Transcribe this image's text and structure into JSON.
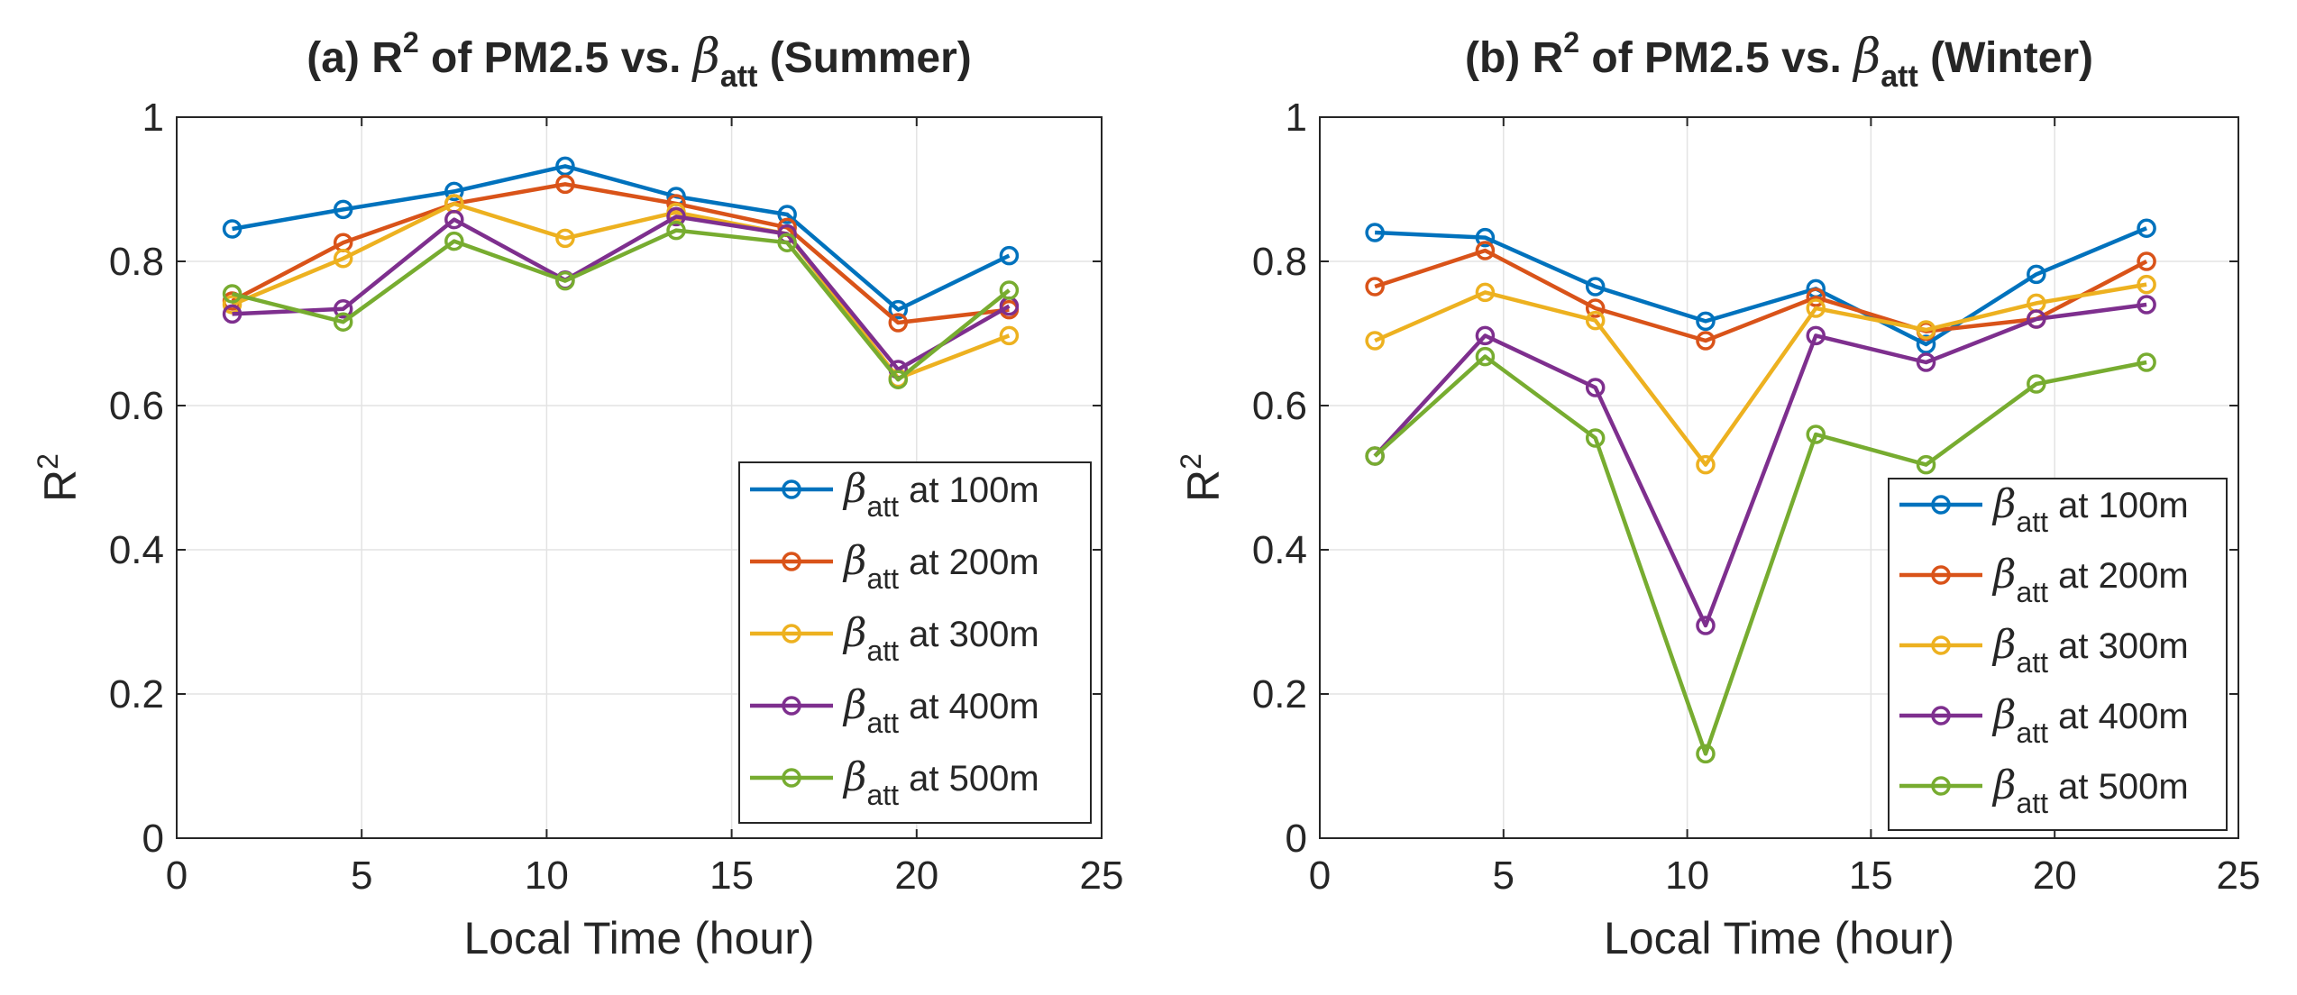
{
  "chart_data": [
    {
      "type": "line",
      "title_prefix": "(a) R",
      "title_sup": "2",
      "title_mid": " of PM2.5 vs. ",
      "title_greek": "β",
      "title_sub": "att",
      "title_suffix": " (Summer)",
      "xlabel": "Local Time (hour)",
      "ylabel": "R",
      "ylabel_sup": "2",
      "xlim": [
        0,
        25
      ],
      "ylim": [
        0,
        1
      ],
      "xticks": [
        0,
        5,
        10,
        15,
        20,
        25
      ],
      "yticks": [
        0,
        0.2,
        0.4,
        0.6,
        0.8,
        1
      ],
      "xtick_labels": [
        "0",
        "5",
        "10",
        "15",
        "20",
        "25"
      ],
      "ytick_labels": [
        "0",
        "0.2",
        "0.4",
        "0.6",
        "0.8",
        "1"
      ],
      "grid": true,
      "legend_position": "bottom-right",
      "x": [
        1.5,
        4.5,
        7.5,
        10.5,
        13.5,
        16.5,
        19.5,
        22.5
      ],
      "series": [
        {
          "greek": "β",
          "sub": "att",
          "label": " at 100m",
          "color": "#0072BD",
          "values": [
            0.845,
            0.872,
            0.897,
            0.932,
            0.89,
            0.865,
            0.733,
            0.808
          ]
        },
        {
          "greek": "β",
          "sub": "att",
          "label": " at 200m",
          "color": "#D95319",
          "values": [
            0.745,
            0.826,
            0.88,
            0.907,
            0.88,
            0.847,
            0.715,
            0.733
          ]
        },
        {
          "greek": "β",
          "sub": "att",
          "label": " at 300m",
          "color": "#EDB120",
          "values": [
            0.74,
            0.804,
            0.88,
            0.832,
            0.868,
            0.838,
            0.638,
            0.697
          ]
        },
        {
          "greek": "β",
          "sub": "att",
          "label": " at 400m",
          "color": "#7E2F8E",
          "values": [
            0.727,
            0.734,
            0.858,
            0.774,
            0.862,
            0.838,
            0.65,
            0.738
          ]
        },
        {
          "greek": "β",
          "sub": "att",
          "label": " at 500m",
          "color": "#77AC30",
          "values": [
            0.755,
            0.716,
            0.828,
            0.773,
            0.843,
            0.826,
            0.636,
            0.76
          ]
        }
      ]
    },
    {
      "type": "line",
      "title_prefix": "(b) R",
      "title_sup": "2",
      "title_mid": " of PM2.5 vs. ",
      "title_greek": "β",
      "title_sub": "att",
      "title_suffix": " (Winter)",
      "xlabel": "Local Time (hour)",
      "ylabel": "R",
      "ylabel_sup": "2",
      "xlim": [
        0,
        25
      ],
      "ylim": [
        0,
        1
      ],
      "xticks": [
        0,
        5,
        10,
        15,
        20,
        25
      ],
      "yticks": [
        0,
        0.2,
        0.4,
        0.6,
        0.8,
        1
      ],
      "xtick_labels": [
        "0",
        "5",
        "10",
        "15",
        "20",
        "25"
      ],
      "ytick_labels": [
        "0",
        "0.2",
        "0.4",
        "0.6",
        "0.8",
        "1"
      ],
      "grid": true,
      "legend_position": "bottom-right",
      "x": [
        1.5,
        4.5,
        7.5,
        10.5,
        13.5,
        16.5,
        19.5,
        22.5
      ],
      "series": [
        {
          "greek": "β",
          "sub": "att",
          "label": " at 100m",
          "color": "#0072BD",
          "values": [
            0.84,
            0.833,
            0.765,
            0.717,
            0.762,
            0.685,
            0.782,
            0.846
          ]
        },
        {
          "greek": "β",
          "sub": "att",
          "label": " at 200m",
          "color": "#D95319",
          "values": [
            0.765,
            0.815,
            0.735,
            0.69,
            0.75,
            0.703,
            0.72,
            0.8
          ]
        },
        {
          "greek": "β",
          "sub": "att",
          "label": " at 300m",
          "color": "#EDB120",
          "values": [
            0.69,
            0.757,
            0.718,
            0.518,
            0.735,
            0.705,
            0.742,
            0.768
          ]
        },
        {
          "greek": "β",
          "sub": "att",
          "label": " at 400m",
          "color": "#7E2F8E",
          "values": [
            0.53,
            0.697,
            0.625,
            0.295,
            0.697,
            0.66,
            0.72,
            0.74
          ]
        },
        {
          "greek": "β",
          "sub": "att",
          "label": " at 500m",
          "color": "#77AC30",
          "values": [
            0.53,
            0.668,
            0.555,
            0.117,
            0.56,
            0.518,
            0.63,
            0.66
          ]
        }
      ]
    }
  ]
}
